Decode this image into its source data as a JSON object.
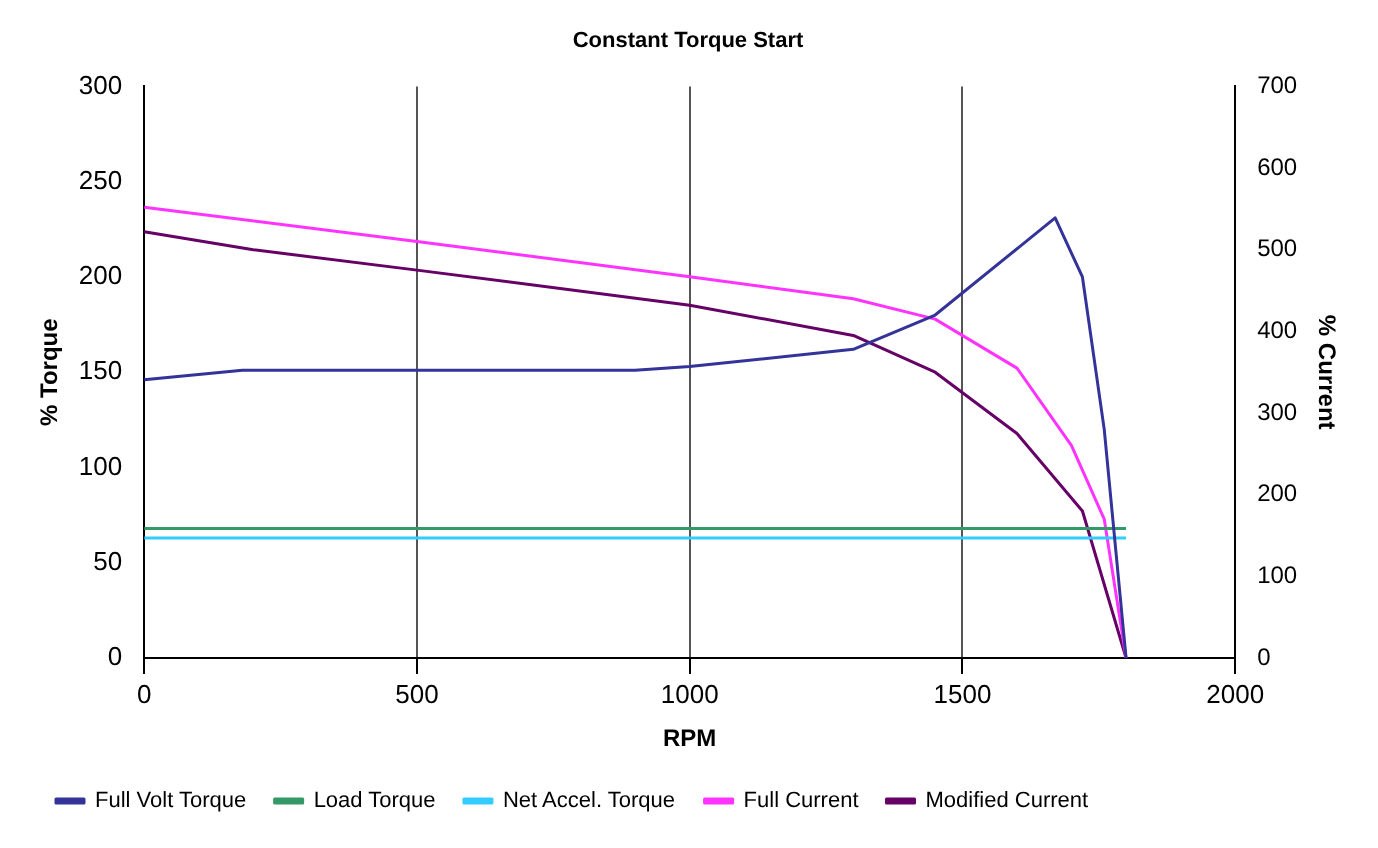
{
  "chart_data": {
    "type": "line",
    "title": "Constant Torque Start",
    "xlabel": "RPM",
    "ylabel": "% Torque",
    "y2label": "% Current",
    "xlim": [
      0,
      2000
    ],
    "xticks": [
      0,
      500,
      1000,
      1500,
      2000
    ],
    "ylim": [
      0,
      300
    ],
    "yticks": [
      0,
      50,
      100,
      150,
      200,
      250,
      300
    ],
    "y2lim": [
      0,
      700
    ],
    "y2ticks": [
      0,
      100,
      200,
      300,
      400,
      500,
      600,
      700
    ],
    "grid": "x",
    "legend": "bottom",
    "marker": "none",
    "line_style": "solid",
    "series": [
      {
        "name": "Full Volt Torque",
        "color": "#333399",
        "x": [
          0,
          180,
          900,
          1000,
          1300,
          1450,
          1670,
          1720,
          1760,
          1800
        ],
        "values": [
          146,
          151,
          151,
          153,
          162,
          180,
          231,
          200,
          120,
          0
        ]
      },
      {
        "name": "Load Torque",
        "color": "#339966",
        "x": [
          0,
          1800
        ],
        "values": [
          68,
          68
        ]
      },
      {
        "name": "Net Accel. Torque",
        "color": "#33ccff",
        "x": [
          0,
          1800
        ],
        "values": [
          63,
          63
        ]
      },
      {
        "name": "Full Current",
        "color": "#ff33ff",
        "axis": "y2",
        "x": [
          0,
          500,
          1000,
          1300,
          1450,
          1600,
          1700,
          1760,
          1800
        ],
        "values": [
          552,
          510,
          467,
          440,
          415,
          355,
          260,
          170,
          0
        ]
      },
      {
        "name": "Modified Current",
        "color": "#660066",
        "axis": "y2",
        "x": [
          0,
          200,
          500,
          1000,
          1300,
          1450,
          1600,
          1720,
          1800
        ],
        "values": [
          522,
          500,
          475,
          432,
          395,
          350,
          275,
          180,
          0
        ]
      }
    ]
  }
}
